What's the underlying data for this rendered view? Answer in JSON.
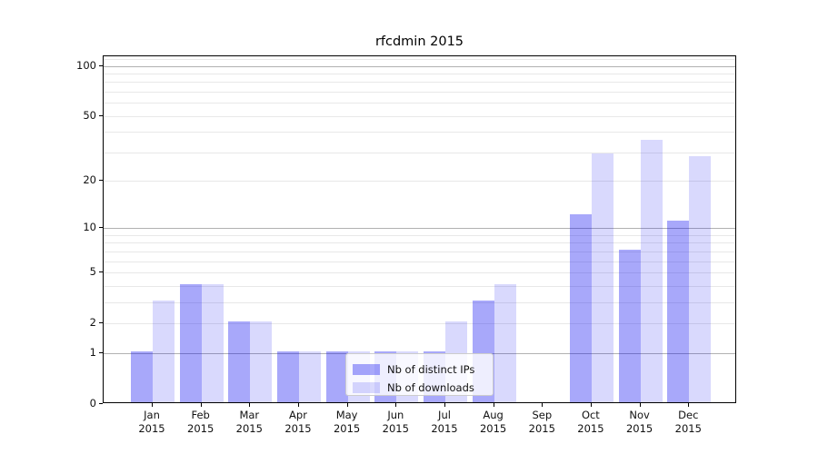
{
  "title": "rfcdmin 2015",
  "legend": {
    "items": [
      {
        "label": "Nb of distinct IPs"
      },
      {
        "label": "Nb of downloads"
      }
    ]
  },
  "colors": {
    "distinct_ips_bar": "rgba(0,0,240,0.34)",
    "downloads_bar": "rgba(0,0,240,0.15)",
    "major_gridline": "#b1b1b1",
    "minor_gridline": "#e8e8e8",
    "spine": "#000000"
  },
  "chart_data": {
    "type": "bar",
    "title": "rfcdmin 2015",
    "xlabel": "",
    "ylabel": "",
    "y_scale": "log1p",
    "categories": [
      "Jan",
      "Feb",
      "Mar",
      "Apr",
      "May",
      "Jun",
      "Jul",
      "Aug",
      "Sep",
      "Oct",
      "Nov",
      "Dec"
    ],
    "x_tick_year": "2015",
    "series": [
      {
        "name": "Nb of distinct IPs",
        "values": [
          1,
          4,
          2,
          1,
          1,
          1,
          1,
          3,
          0,
          12,
          7,
          11
        ]
      },
      {
        "name": "Nb of downloads",
        "values": [
          3,
          4,
          2,
          1,
          1,
          1,
          2,
          4,
          0,
          29,
          35,
          28
        ]
      }
    ],
    "y_tick_values": [
      0,
      1,
      2,
      5,
      10,
      20,
      50,
      100
    ],
    "major_gridline_values": [
      1,
      10,
      100
    ],
    "minor_gridline_values": [
      2,
      3,
      4,
      5,
      6,
      7,
      8,
      9,
      20,
      30,
      40,
      50,
      60,
      70,
      80,
      90,
      110
    ],
    "ylim": [
      0,
      114
    ],
    "legend_position": "lower-center",
    "grid": true
  }
}
